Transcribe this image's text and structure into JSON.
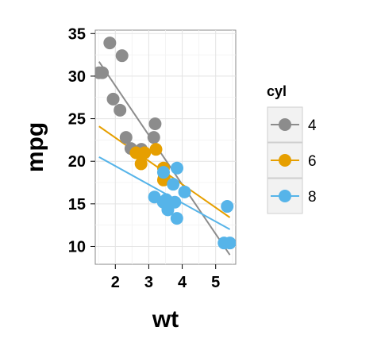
{
  "chart_data": {
    "type": "scatter",
    "xlabel": "wt",
    "ylabel": "mpg",
    "xlim": [
      1.4,
      5.6
    ],
    "ylim": [
      7.9,
      35.4
    ],
    "xticks": [
      2,
      3,
      4,
      5
    ],
    "yticks": [
      10,
      15,
      20,
      25,
      30,
      35
    ],
    "grid": true,
    "legend": {
      "title": "cyl",
      "position": "right"
    },
    "colors": {
      "4": "#8c8c8c",
      "6": "#e69f00",
      "8": "#56b4e9"
    },
    "series": [
      {
        "name": "4",
        "points": [
          [
            2.32,
            22.8
          ],
          [
            3.19,
            24.4
          ],
          [
            3.15,
            22.8
          ],
          [
            2.2,
            32.4
          ],
          [
            1.615,
            30.4
          ],
          [
            1.835,
            33.9
          ],
          [
            2.465,
            21.5
          ],
          [
            1.935,
            27.3
          ],
          [
            2.14,
            26.0
          ],
          [
            1.513,
            30.4
          ],
          [
            2.78,
            21.4
          ]
        ],
        "fit": [
          [
            1.513,
            31.7
          ],
          [
            5.424,
            9.0
          ]
        ]
      },
      {
        "name": "6",
        "points": [
          [
            2.62,
            21.0
          ],
          [
            2.875,
            21.0
          ],
          [
            3.215,
            21.4
          ],
          [
            3.46,
            18.1
          ],
          [
            3.44,
            19.2
          ],
          [
            3.44,
            17.8
          ],
          [
            2.77,
            19.7
          ]
        ],
        "fit": [
          [
            1.513,
            24.1
          ],
          [
            5.424,
            13.4
          ]
        ]
      },
      {
        "name": "8",
        "points": [
          [
            3.44,
            18.7
          ],
          [
            3.57,
            14.3
          ],
          [
            4.07,
            16.4
          ],
          [
            3.73,
            17.3
          ],
          [
            3.78,
            15.2
          ],
          [
            5.25,
            10.4
          ],
          [
            5.424,
            10.4
          ],
          [
            5.345,
            14.7
          ],
          [
            3.52,
            15.5
          ],
          [
            3.435,
            15.2
          ],
          [
            3.84,
            13.3
          ],
          [
            3.845,
            19.2
          ],
          [
            3.17,
            15.8
          ],
          [
            3.57,
            15.0
          ]
        ],
        "fit": [
          [
            1.513,
            20.5
          ],
          [
            5.424,
            12.0
          ]
        ]
      }
    ]
  }
}
